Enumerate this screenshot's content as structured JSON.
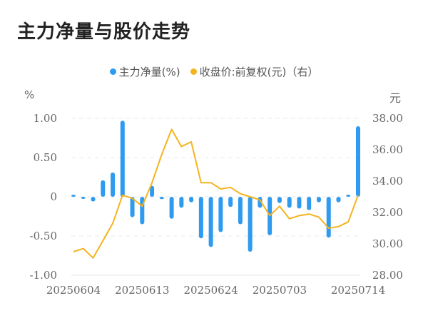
{
  "title": "主力净量与股价走势",
  "legend": [
    {
      "label": "主力净量(%)",
      "color": "#2E9BF0"
    },
    {
      "label": "收盘价:前复权(元)（右）",
      "color": "#F5B31F"
    }
  ],
  "axes": {
    "left_unit": "%",
    "right_unit": "元",
    "left_ticks": [
      "1.00",
      "0.50",
      "0",
      "-0.50",
      "-1.00"
    ],
    "right_ticks": [
      "38.00",
      "36.00",
      "34.00",
      "32.00",
      "30.00",
      "28.00"
    ],
    "x_ticks": [
      "20250604",
      "20250613",
      "20250624",
      "20250703",
      "20250714"
    ]
  },
  "chart_data": {
    "type": "bar+line",
    "title": "主力净量与股价走势",
    "x": [
      "20250604",
      "20250605",
      "20250606",
      "20250609",
      "20250610",
      "20250611",
      "20250612",
      "20250613",
      "20250616",
      "20250617",
      "20250618",
      "20250619",
      "20250620",
      "20250623",
      "20250624",
      "20250625",
      "20250626",
      "20250627",
      "20250630",
      "20250701",
      "20250702",
      "20250703",
      "20250704",
      "20250707",
      "20250708",
      "20250709",
      "20250710",
      "20250711",
      "20250712",
      "20250714"
    ],
    "x_tick_labels": [
      "20250604",
      "20250613",
      "20250624",
      "20250703",
      "20250714"
    ],
    "x_tick_indices": [
      0,
      7,
      14,
      21,
      29
    ],
    "series": [
      {
        "name": "主力净量(%)",
        "type": "bar",
        "axis": "left",
        "color": "#2E9BF0",
        "values": [
          0.02,
          -0.01,
          -0.06,
          0.21,
          0.31,
          0.97,
          -0.26,
          -0.35,
          0.14,
          -0.03,
          -0.28,
          -0.14,
          -0.07,
          -0.53,
          -0.64,
          -0.45,
          -0.13,
          -0.35,
          -0.7,
          -0.14,
          -0.49,
          -0.08,
          -0.14,
          -0.15,
          -0.17,
          -0.07,
          -0.52,
          -0.07,
          0.02,
          0.9
        ]
      },
      {
        "name": "收盘价:前复权(元)（右）",
        "type": "line",
        "axis": "right",
        "color": "#F5B31F",
        "values": [
          29.5,
          29.7,
          29.1,
          30.2,
          31.3,
          33.1,
          32.9,
          32.4,
          33.9,
          35.7,
          37.3,
          36.2,
          36.5,
          33.9,
          33.9,
          33.5,
          33.6,
          33.2,
          33.0,
          32.8,
          31.8,
          32.4,
          31.6,
          31.8,
          31.9,
          31.7,
          31.0,
          31.1,
          31.4,
          33.1
        ]
      }
    ],
    "ylabel_left": "%",
    "ylabel_right": "元",
    "ylim_left": [
      -1.0,
      1.0
    ],
    "ylim_right": [
      28.0,
      38.0
    ],
    "grid": true,
    "legend_position": "top"
  }
}
